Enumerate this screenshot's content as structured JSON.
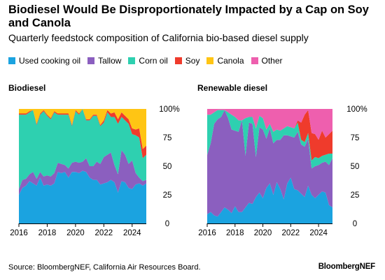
{
  "title": "Biodiesel Would Be Disproportionately Impacted by a Cap on Soy and Canola",
  "subtitle": "Quarterly feedstock composition of California bio-based diesel supply",
  "source": "Source: BloombergNEF, California Air Resources Board.",
  "brand": "BloombergNEF",
  "colors": {
    "Used cooking oil": "#1ba3e0",
    "Tallow": "#8b5fbf",
    "Corn oil": "#2ed0b0",
    "Soy": "#ef3b2c",
    "Canola": "#ffc514",
    "Other": "#ee5fae"
  },
  "legend": [
    "Used cooking oil",
    "Tallow",
    "Corn oil",
    "Soy",
    "Canola",
    "Other"
  ],
  "chart_data": [
    {
      "type": "area",
      "title": "Biodiesel",
      "stacked": true,
      "x_start": 2016.0,
      "x_step": 0.25,
      "x_ticks": [
        2016,
        2018,
        2020,
        2022,
        2024
      ],
      "y_ticks": [
        "0",
        "25",
        "50",
        "75",
        "100%"
      ],
      "ylim": [
        0,
        100
      ],
      "grid": false,
      "series": [
        {
          "name": "Used cooking oil",
          "values": [
            25,
            31,
            33,
            37,
            35,
            33,
            40,
            33,
            34,
            33,
            35,
            45,
            44,
            45,
            40,
            45,
            45,
            44,
            46,
            45,
            40,
            38,
            38,
            34,
            35,
            36,
            38,
            36,
            27,
            37,
            36,
            31,
            30,
            34,
            35,
            33,
            35
          ]
        },
        {
          "name": "Tallow",
          "values": [
            5,
            7,
            6,
            6,
            10,
            6,
            5,
            8,
            8,
            8,
            9,
            8,
            8,
            6,
            8,
            8,
            9,
            9,
            8,
            12,
            10,
            12,
            16,
            18,
            23,
            24,
            24,
            15,
            16,
            27,
            24,
            21,
            25,
            10,
            5,
            4,
            3
          ]
        },
        {
          "name": "Corn oil",
          "values": [
            65,
            57,
            56,
            54,
            54,
            47,
            50,
            57,
            52,
            50,
            53,
            42,
            43,
            44,
            47,
            32,
            44,
            42,
            46,
            33,
            40,
            44,
            40,
            33,
            30,
            37,
            31,
            42,
            44,
            29,
            30,
            35,
            23,
            33,
            35,
            20,
            22
          ]
        },
        {
          "name": "Soy",
          "values": [
            1,
            1,
            1,
            1,
            0,
            1,
            1,
            1,
            1,
            1,
            1,
            1,
            1,
            1,
            1,
            1,
            1,
            1,
            0,
            1,
            1,
            1,
            1,
            1,
            2,
            2,
            3,
            4,
            4,
            4,
            4,
            4,
            5,
            5,
            8,
            8,
            8
          ]
        },
        {
          "name": "Canola",
          "values": [
            4,
            4,
            4,
            2,
            1,
            13,
            4,
            1,
            5,
            8,
            2,
            4,
            4,
            4,
            4,
            14,
            1,
            4,
            0,
            9,
            9,
            5,
            5,
            14,
            10,
            1,
            4,
            3,
            9,
            3,
            6,
            9,
            17,
            18,
            17,
            35,
            32
          ]
        },
        {
          "name": "Other",
          "values": [
            0,
            0,
            0,
            0,
            0,
            0,
            0,
            0,
            0,
            0,
            0,
            0,
            0,
            0,
            0,
            0,
            0,
            0,
            0,
            0,
            0,
            0,
            0,
            0,
            0,
            0,
            0,
            0,
            0,
            0,
            0,
            0,
            0,
            0,
            0,
            0,
            0
          ]
        }
      ]
    },
    {
      "type": "area",
      "title": "Renewable diesel",
      "stacked": true,
      "x_start": 2016.0,
      "x_step": 0.25,
      "x_ticks": [
        2016,
        2018,
        2020,
        2022,
        2024
      ],
      "y_ticks": [
        "0",
        "25",
        "50",
        "75",
        "100%"
      ],
      "ylim": [
        0,
        100
      ],
      "grid": false,
      "series": [
        {
          "name": "Used cooking oil",
          "values": [
            8,
            10,
            7,
            6,
            10,
            14,
            12,
            9,
            15,
            10,
            10,
            14,
            18,
            17,
            23,
            27,
            22,
            31,
            35,
            25,
            36,
            30,
            21,
            35,
            40,
            30,
            29,
            26,
            23,
            33,
            25,
            22,
            25,
            28,
            27,
            16,
            14
          ]
        },
        {
          "name": "Tallow",
          "values": [
            52,
            60,
            80,
            85,
            83,
            85,
            80,
            73,
            66,
            70,
            80,
            45,
            70,
            70,
            35,
            57,
            60,
            43,
            48,
            45,
            37,
            43,
            56,
            42,
            36,
            45,
            51,
            43,
            44,
            41,
            23,
            28,
            26,
            25,
            27,
            35,
            43
          ]
        },
        {
          "name": "Corn oil",
          "values": [
            35,
            25,
            10,
            8,
            6,
            0,
            5,
            13,
            12,
            10,
            0,
            33,
            5,
            6,
            25,
            10,
            10,
            8,
            4,
            10,
            9,
            8,
            6,
            8,
            8,
            8,
            8,
            4,
            4,
            5,
            7,
            8,
            6,
            6,
            6,
            10,
            4
          ]
        },
        {
          "name": "Soy",
          "values": [
            0,
            0,
            0,
            0,
            0,
            0,
            0,
            0,
            0,
            0,
            0,
            0,
            0,
            0,
            0,
            0,
            0,
            0,
            0,
            0,
            0,
            0,
            0,
            0,
            0,
            0,
            2,
            15,
            24,
            20,
            24,
            20,
            16,
            22,
            15,
            17,
            20
          ]
        },
        {
          "name": "Canola",
          "values": [
            0,
            0,
            0,
            0,
            0,
            0,
            0,
            0,
            0,
            0,
            0,
            0,
            0,
            0,
            0,
            0,
            0,
            0,
            0,
            0,
            0,
            0,
            0,
            0,
            0,
            0,
            0,
            0,
            0,
            0,
            0,
            0,
            0,
            0,
            0,
            0,
            0
          ]
        },
        {
          "name": "Other",
          "values": [
            5,
            5,
            3,
            1,
            1,
            1,
            3,
            5,
            7,
            10,
            10,
            8,
            7,
            7,
            17,
            6,
            8,
            18,
            13,
            20,
            18,
            19,
            17,
            15,
            16,
            17,
            10,
            12,
            5,
            1,
            21,
            22,
            27,
            19,
            25,
            22,
            19
          ]
        }
      ]
    }
  ]
}
